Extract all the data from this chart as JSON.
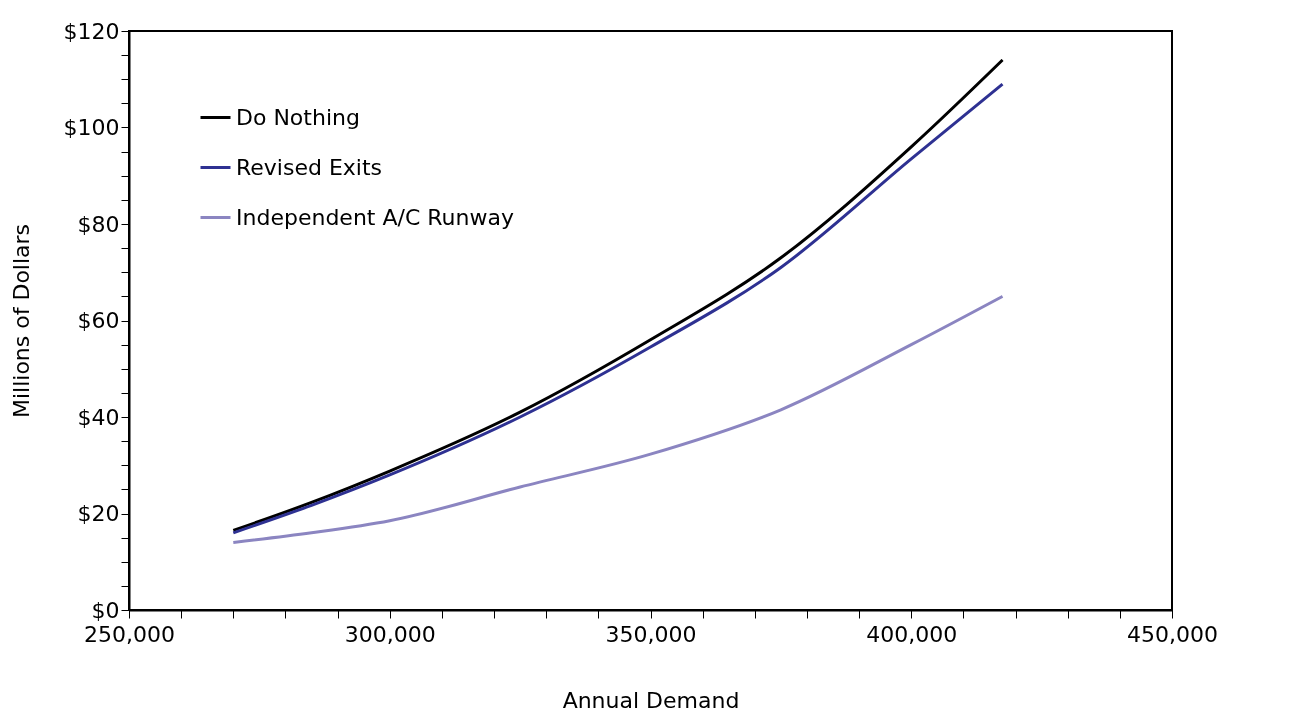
{
  "chart_data": {
    "type": "line",
    "xlabel": "Annual Demand",
    "ylabel": "Millions of Dollars",
    "x": [
      270000,
      285000,
      300000,
      325000,
      350000,
      375000,
      400000,
      417500
    ],
    "series": [
      {
        "name": "Do Nothing",
        "color": "#000000",
        "values": [
          16.5,
          22.3,
          28.8,
          41,
          56,
          73,
          96,
          114
        ]
      },
      {
        "name": "Revised Exits",
        "color": "#2e3192",
        "values": [
          16,
          21.7,
          28,
          40,
          54.5,
          71,
          93.5,
          109
        ]
      },
      {
        "name": "Independent A/C Runway",
        "color": "#8b85c1",
        "values": [
          14,
          16,
          18.5,
          25.5,
          32.3,
          41.5,
          55,
          65
        ]
      }
    ],
    "xlim": [
      250000,
      450000
    ],
    "xticks": [
      {
        "value": 250000,
        "label": "250,000"
      },
      {
        "value": 260000,
        "label": null
      },
      {
        "value": 270000,
        "label": null
      },
      {
        "value": 280000,
        "label": null
      },
      {
        "value": 290000,
        "label": null
      },
      {
        "value": 300000,
        "label": "300,000"
      },
      {
        "value": 310000,
        "label": null
      },
      {
        "value": 320000,
        "label": null
      },
      {
        "value": 330000,
        "label": null
      },
      {
        "value": 340000,
        "label": null
      },
      {
        "value": 350000,
        "label": "350,000"
      },
      {
        "value": 360000,
        "label": null
      },
      {
        "value": 370000,
        "label": null
      },
      {
        "value": 380000,
        "label": null
      },
      {
        "value": 390000,
        "label": null
      },
      {
        "value": 400000,
        "label": "400,000"
      },
      {
        "value": 410000,
        "label": null
      },
      {
        "value": 420000,
        "label": null
      },
      {
        "value": 430000,
        "label": null
      },
      {
        "value": 440000,
        "label": null
      },
      {
        "value": 450000,
        "label": "450,000"
      }
    ],
    "ylim": [
      0,
      120
    ],
    "yticks": [
      {
        "value": 0,
        "label": "$0"
      },
      {
        "value": 5,
        "label": null
      },
      {
        "value": 10,
        "label": null
      },
      {
        "value": 15,
        "label": null
      },
      {
        "value": 20,
        "label": "$20"
      },
      {
        "value": 25,
        "label": null
      },
      {
        "value": 30,
        "label": null
      },
      {
        "value": 35,
        "label": null
      },
      {
        "value": 40,
        "label": "$40"
      },
      {
        "value": 45,
        "label": null
      },
      {
        "value": 50,
        "label": null
      },
      {
        "value": 55,
        "label": null
      },
      {
        "value": 60,
        "label": "$60"
      },
      {
        "value": 65,
        "label": null
      },
      {
        "value": 70,
        "label": null
      },
      {
        "value": 75,
        "label": null
      },
      {
        "value": 80,
        "label": "$80"
      },
      {
        "value": 85,
        "label": null
      },
      {
        "value": 90,
        "label": null
      },
      {
        "value": 95,
        "label": null
      },
      {
        "value": 100,
        "label": "$100"
      },
      {
        "value": 105,
        "label": null
      },
      {
        "value": 110,
        "label": null
      },
      {
        "value": 115,
        "label": null
      },
      {
        "value": 120,
        "label": "$120"
      }
    ],
    "grid": false,
    "legend": "top left",
    "marker": "none",
    "line_style": "solid"
  }
}
